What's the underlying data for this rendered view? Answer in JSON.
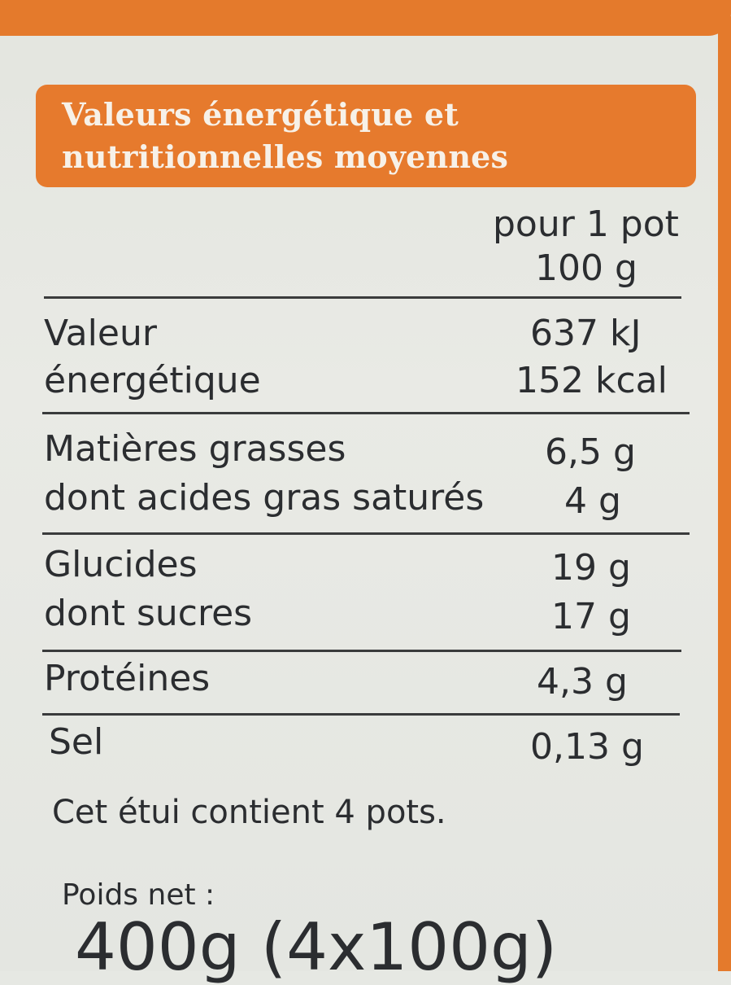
{
  "header": {
    "line1": "Valeurs énergétique et",
    "line2": "nutritionnelles moyennes"
  },
  "column": {
    "line1": "pour 1 pot",
    "line2": "100 g"
  },
  "rows": {
    "energy": {
      "label1": "Valeur",
      "label2": "énergétique",
      "value1": "637 kJ",
      "value2": "152 kcal"
    },
    "fat": {
      "label": "Matières grasses",
      "value": "6,5 g"
    },
    "saturated": {
      "label": "dont acides gras saturés",
      "value": "4 g"
    },
    "carbs": {
      "label": "Glucides",
      "value": "19 g"
    },
    "sugars": {
      "label": "dont sucres",
      "value": "17 g"
    },
    "protein": {
      "label": "Protéines",
      "value": "4,3 g"
    },
    "salt": {
      "label": "Sel",
      "value": "0,13 g"
    }
  },
  "footer": {
    "contains": "Cet étui contient 4 pots.",
    "net_weight_label": "Poids net :",
    "net_weight_value": "400g (4x100g)"
  },
  "colors": {
    "orange": "#e47a2c",
    "background": "#e6e8e3",
    "text": "#2b2d30"
  }
}
